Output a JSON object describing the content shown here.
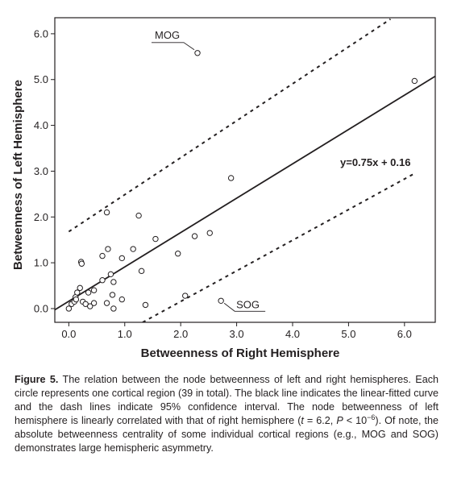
{
  "chart_data": {
    "type": "scatter",
    "title": "",
    "xlabel": "Betweenness of Right Hemisphere",
    "ylabel": "Betweenness of Left Hemisphere",
    "xlim": [
      -0.25,
      6.55
    ],
    "ylim": [
      -0.3,
      6.35
    ],
    "xticks": [
      0.0,
      1.0,
      2.0,
      3.0,
      4.0,
      5.0,
      6.0
    ],
    "xtick_labels": [
      "0.0",
      "1.0",
      "2.0",
      "3.0",
      "4.0",
      "5.0",
      "6.0"
    ],
    "yticks": [
      0.0,
      1.0,
      2.0,
      3.0,
      4.0,
      5.0,
      6.0
    ],
    "ytick_labels": [
      "0.0",
      "1.0",
      "2.0",
      "3.0",
      "4.0",
      "5.0",
      "6.0"
    ],
    "grid": false,
    "points": [
      {
        "x": 0.0,
        "y": 0.0
      },
      {
        "x": 0.05,
        "y": 0.1
      },
      {
        "x": 0.1,
        "y": 0.15
      },
      {
        "x": 0.12,
        "y": 0.25
      },
      {
        "x": 0.15,
        "y": 0.35
      },
      {
        "x": 0.2,
        "y": 0.45
      },
      {
        "x": 0.22,
        "y": 1.02
      },
      {
        "x": 0.23,
        "y": 0.98
      },
      {
        "x": 0.25,
        "y": 0.15
      },
      {
        "x": 0.3,
        "y": 0.1
      },
      {
        "x": 0.35,
        "y": 0.35
      },
      {
        "x": 0.38,
        "y": 0.05
      },
      {
        "x": 0.45,
        "y": 0.4
      },
      {
        "x": 0.45,
        "y": 0.12
      },
      {
        "x": 0.6,
        "y": 0.62
      },
      {
        "x": 0.6,
        "y": 1.15
      },
      {
        "x": 0.68,
        "y": 0.12
      },
      {
        "x": 0.68,
        "y": 2.1
      },
      {
        "x": 0.7,
        "y": 1.3
      },
      {
        "x": 0.75,
        "y": 0.75
      },
      {
        "x": 0.78,
        "y": 0.3
      },
      {
        "x": 0.8,
        "y": 0.58
      },
      {
        "x": 0.8,
        "y": 0.0
      },
      {
        "x": 0.95,
        "y": 1.1
      },
      {
        "x": 0.95,
        "y": 0.2
      },
      {
        "x": 1.15,
        "y": 1.3
      },
      {
        "x": 1.25,
        "y": 2.03
      },
      {
        "x": 1.3,
        "y": 0.82
      },
      {
        "x": 1.37,
        "y": 0.08
      },
      {
        "x": 1.55,
        "y": 1.52
      },
      {
        "x": 1.95,
        "y": 1.2
      },
      {
        "x": 2.08,
        "y": 0.28
      },
      {
        "x": 2.25,
        "y": 1.58
      },
      {
        "x": 2.3,
        "y": 5.58
      },
      {
        "x": 2.52,
        "y": 1.65
      },
      {
        "x": 2.72,
        "y": 0.17
      },
      {
        "x": 2.9,
        "y": 2.85
      },
      {
        "x": 6.18,
        "y": 4.97
      },
      {
        "x": 0.13,
        "y": 0.2
      }
    ],
    "fit_line": {
      "slope": 0.75,
      "intercept": 0.16,
      "x_range": [
        -0.25,
        6.55
      ]
    },
    "confidence_upper": {
      "x": [
        0.0,
        5.75
      ],
      "y": [
        1.68,
        6.32
      ]
    },
    "confidence_lower": {
      "x": [
        1.32,
        6.18
      ],
      "y": [
        -0.3,
        2.95
      ]
    },
    "equation_label": "y=0.75x + 0.16",
    "annotations": [
      {
        "text": "MOG",
        "point": {
          "x": 2.3,
          "y": 5.58
        }
      },
      {
        "text": "SOG",
        "point": {
          "x": 2.72,
          "y": 0.17
        }
      }
    ]
  },
  "caption": {
    "label": "Figure 5.",
    "part1": " The relation between the node betweenness of left and right hemispheres. Each circle represents one cortical region (39 in total). The black line indicates the linear-fitted curve and the dash lines indicate 95% confidence interval. The node betweenness of left hemisphere is linearly correlated with that of right hemisphere (",
    "t_symbol": "t",
    "t_value": " = 6.2, ",
    "p_symbol": "P",
    "p_relation": " < 10",
    "p_exponent": "−6",
    "part2": "). Of note, the absolute betweenness centrality of some individual cortical regions (e.g., MOG and SOG) demonstrates large hemispheric asymmetry."
  }
}
